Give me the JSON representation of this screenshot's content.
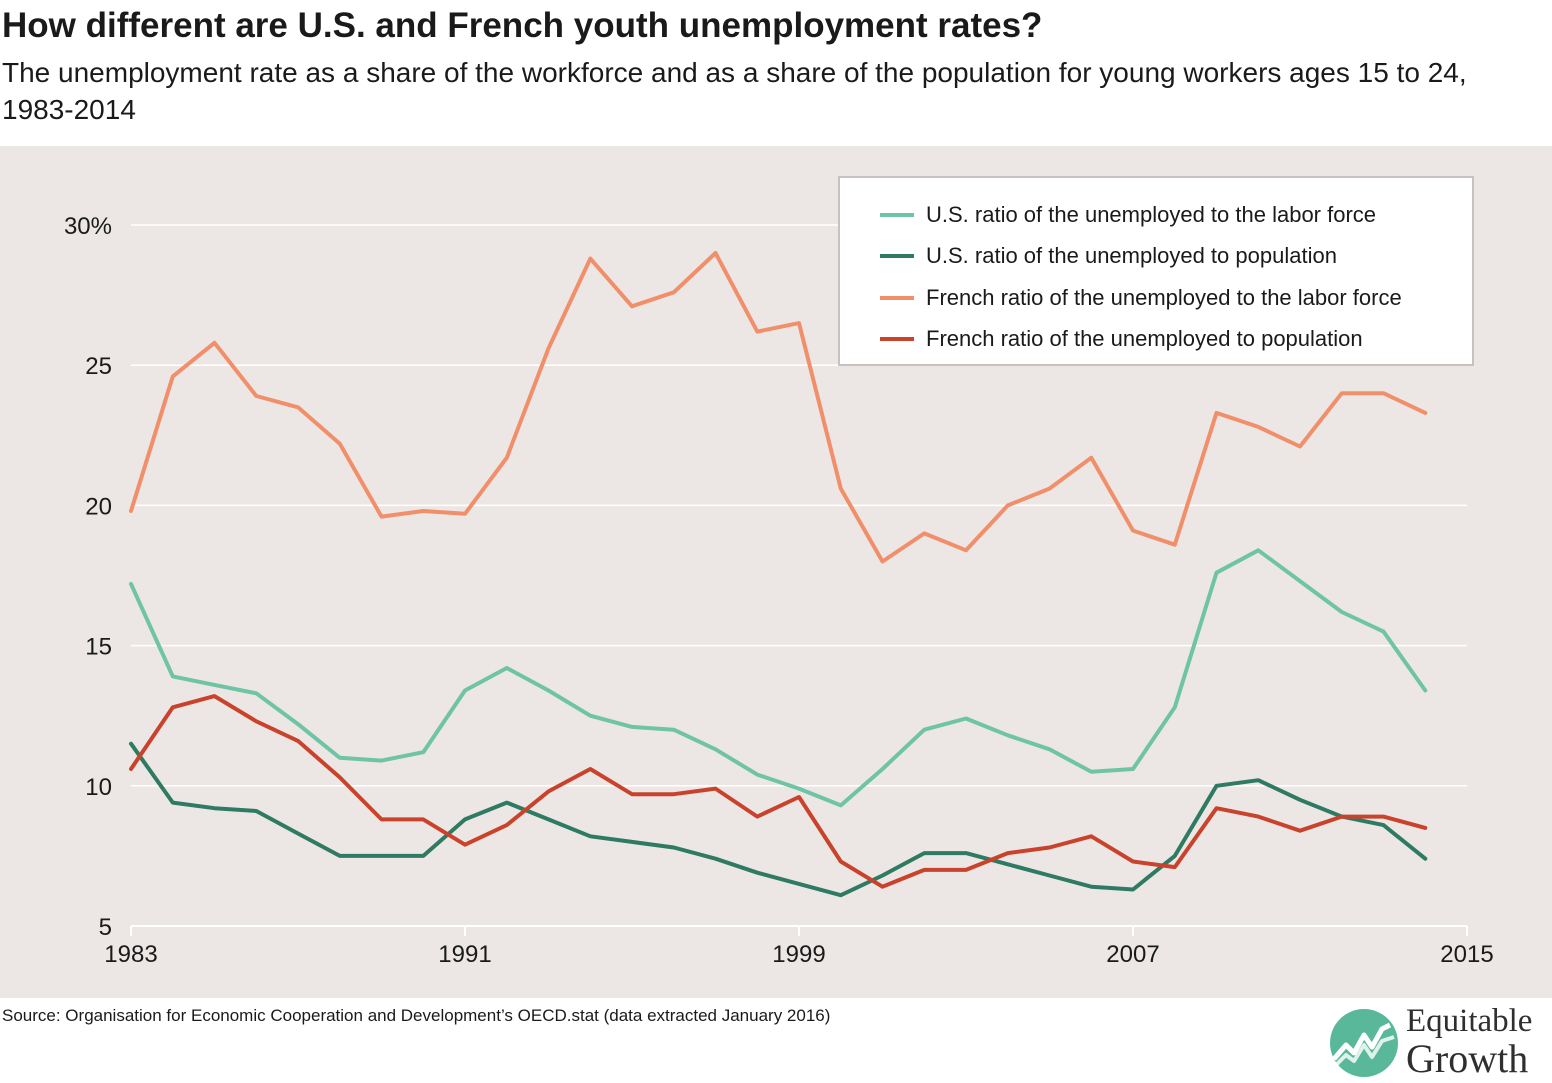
{
  "title": "How different are U.S. and French youth unemployment rates?",
  "subtitle": "The unemployment rate as a share of the workforce and as a share of the population for young workers ages 15 to 24, 1983-2014",
  "source": "Source: Organisation for Economic Cooperation and Development’s OECD.stat (data extracted January 2016)",
  "logo": {
    "line1": "Equitable",
    "line2": "Growth"
  },
  "colors": {
    "panel": "#ece7e5",
    "us_lf": "#6ec4a4",
    "us_pop": "#2e7a62",
    "fr_lf": "#f08f6a",
    "fr_pop": "#c9432c",
    "logo_circle": "#5ab89a"
  },
  "chart_data": {
    "type": "line",
    "title": "How different are U.S. and French youth unemployment rates?",
    "xlabel": "",
    "ylabel": "",
    "xlim": [
      1983,
      2015
    ],
    "ylim": [
      5,
      31
    ],
    "x_ticks": [
      1983,
      1991,
      1999,
      2007,
      2015
    ],
    "y_ticks": [
      5,
      10,
      15,
      20,
      25,
      30
    ],
    "y_tick_labels": [
      "5",
      "10",
      "15",
      "20",
      "25",
      "30%"
    ],
    "grid": "horizontal",
    "legend_position": "top-right",
    "x": [
      1983,
      1984,
      1985,
      1986,
      1987,
      1988,
      1989,
      1990,
      1991,
      1992,
      1993,
      1994,
      1995,
      1996,
      1997,
      1998,
      1999,
      2000,
      2001,
      2002,
      2003,
      2004,
      2005,
      2006,
      2007,
      2008,
      2009,
      2010,
      2011,
      2012,
      2013,
      2014
    ],
    "series": [
      {
        "name": "U.S. ratio of the unemployed to the labor force",
        "color": "#6ec4a4",
        "values": [
          17.2,
          13.9,
          13.6,
          13.3,
          12.2,
          11.0,
          10.9,
          11.2,
          13.4,
          14.2,
          13.4,
          12.5,
          12.1,
          12.0,
          11.3,
          10.4,
          9.9,
          9.3,
          10.6,
          12.0,
          12.4,
          11.8,
          11.3,
          10.5,
          10.6,
          12.8,
          17.6,
          18.4,
          17.3,
          16.2,
          15.5,
          13.4
        ]
      },
      {
        "name": "U.S. ratio of the unemployed to population",
        "color": "#2e7a62",
        "values": [
          11.5,
          9.4,
          9.2,
          9.1,
          8.3,
          7.5,
          7.5,
          7.5,
          8.8,
          9.4,
          8.8,
          8.2,
          8.0,
          7.8,
          7.4,
          6.9,
          6.5,
          6.1,
          6.8,
          7.6,
          7.6,
          7.2,
          6.8,
          6.4,
          6.3,
          7.5,
          10.0,
          10.2,
          9.5,
          8.9,
          8.6,
          7.4
        ]
      },
      {
        "name": "French ratio of the unemployed to the labor force",
        "color": "#f08f6a",
        "values": [
          19.8,
          24.6,
          25.8,
          23.9,
          23.5,
          22.2,
          19.6,
          19.8,
          19.7,
          21.7,
          25.6,
          28.8,
          27.1,
          27.6,
          29.0,
          26.2,
          26.5,
          20.6,
          18.0,
          19.0,
          18.4,
          20.0,
          20.6,
          21.7,
          19.1,
          18.6,
          23.3,
          22.8,
          22.1,
          24.0,
          24.0,
          23.3
        ]
      },
      {
        "name": "French ratio of the unemployed to population",
        "color": "#c9432c",
        "values": [
          10.6,
          12.8,
          13.2,
          12.3,
          11.6,
          10.3,
          8.8,
          8.8,
          7.9,
          8.6,
          9.8,
          10.6,
          9.7,
          9.7,
          9.9,
          8.9,
          9.6,
          7.3,
          6.4,
          7.0,
          7.0,
          7.6,
          7.8,
          8.2,
          7.3,
          7.1,
          9.2,
          8.9,
          8.4,
          8.9,
          8.9,
          8.5
        ]
      }
    ]
  }
}
